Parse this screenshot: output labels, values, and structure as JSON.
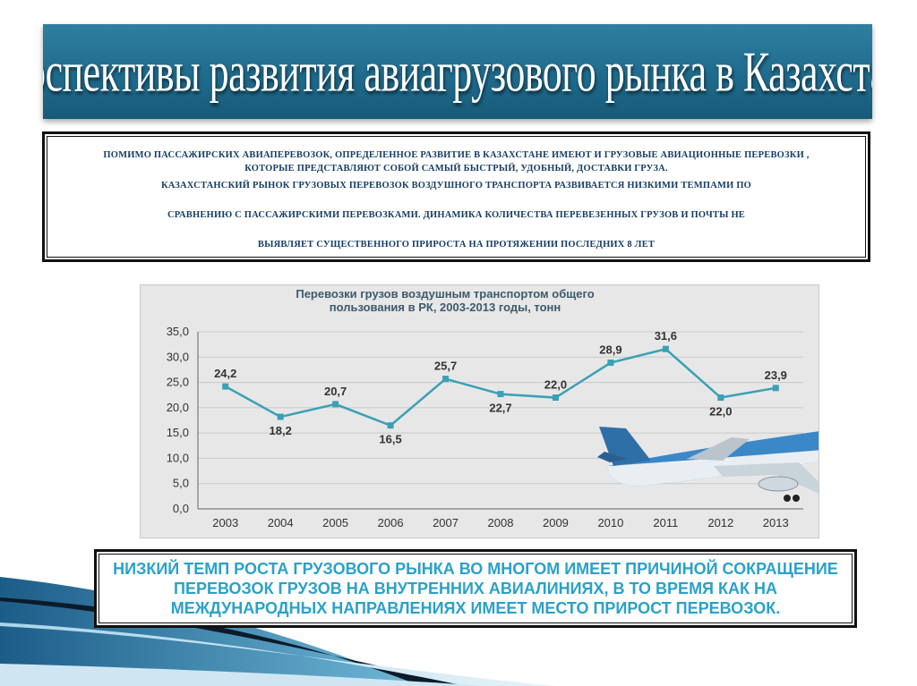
{
  "slide": {
    "title": "Перспективы развития авиагрузового рынка в Казахстане.",
    "intro_lines": [
      "ПОМИМО ПАССАЖИРСКИХ АВИАПЕРЕВОЗОК, ОПРЕДЕЛЕННОЕ РАЗВИТИЕ В КАЗАХСТАНЕ ИМЕЮТ И ГРУЗОВЫЕ АВИАЦИОННЫЕ ПЕРЕВОЗКИ ,",
      "КОТОРЫЕ ПРЕДСТАВЛЯЮТ СОБОЙ САМЫЙ БЫСТРЫЙ, УДОБНЫЙ, ДОСТАВКИ ГРУЗА.",
      "КАЗАХСТАНСКИЙ РЫНОК ГРУЗОВЫХ ПЕРЕВОЗОК ВОЗДУШНОГО ТРАНСПОРТА РАЗВИВАЕТСЯ НИЗКИМИ ТЕМПАМИ ПО",
      "СРАВНЕНИЮ С ПАССАЖИРСКИМИ ПЕРЕВОЗКАМИ. ДИНАМИКА КОЛИЧЕСТВА ПЕРЕВЕЗЕННЫХ ГРУЗОВ И ПОЧТЫ НЕ",
      "ВЫЯВЛЯЕТ СУЩЕСТВЕННОГО ПРИРОСТА НА ПРОТЯЖЕНИИ ПОСЛЕДНИХ 8 ЛЕТ"
    ],
    "conclusion": "НИЗКИЙ ТЕМП РОСТА ГРУЗОВОГО РЫНКА ВО МНОГОМ ИМЕЕТ ПРИЧИНОЙ СОКРАЩЕНИЕ ПЕРЕВОЗОК ГРУЗОВ НА ВНУТРЕННИХ АВИАЛИНИЯХ, В ТО ВРЕМЯ КАК НА МЕЖДУНАРОДНЫХ НАПРАВЛЕНИЯХ ИМЕЕТ МЕСТО ПРИРОСТ ПЕРЕВОЗОК.",
    "colors": {
      "title_bar": "#1f6b8d",
      "intro_text": "#173e66",
      "conclusion_text": "#2ba1c9",
      "line": "#3aa0b6",
      "chart_bg": "#e7e7e7"
    }
  },
  "chart_data": {
    "type": "line",
    "title": "Перевозки грузов воздушным транспортом общего пользования в РК, 2003-2013 годы, тонн",
    "title_lines": [
      "Перевозки грузов воздушным транспортом общего",
      "пользования в РК, 2003-2013 годы, тонн"
    ],
    "categories": [
      "2003",
      "2004",
      "2005",
      "2006",
      "2007",
      "2008",
      "2009",
      "2010",
      "2011",
      "2012",
      "2013"
    ],
    "values": [
      24.2,
      18.2,
      20.7,
      16.5,
      25.7,
      22.7,
      22.0,
      28.9,
      31.6,
      22.0,
      23.9
    ],
    "data_labels": [
      "24,2",
      "18,2",
      "20,7",
      "16,5",
      "25,7",
      "22,7",
      "22,0",
      "28,9",
      "31,6",
      "22,0",
      "23,9"
    ],
    "yticks": [
      "0,0",
      "5,0",
      "10,0",
      "15,0",
      "20,0",
      "25,0",
      "30,0",
      "35,0"
    ],
    "ylim": [
      0,
      35
    ],
    "grid": true,
    "legend": "none",
    "image": "airplane"
  }
}
